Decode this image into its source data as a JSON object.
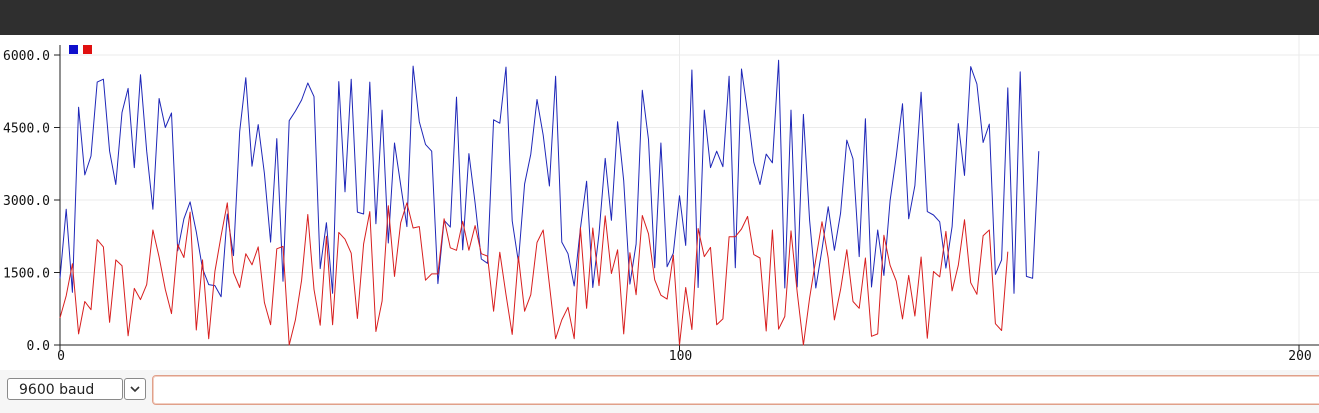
{
  "window": {
    "title_bar_color": "#2f2f2f"
  },
  "plotter": {
    "legend": [
      {
        "color": "#1010cc"
      },
      {
        "color": "#e01010"
      }
    ]
  },
  "chart_data": {
    "type": "line",
    "x_range": [
      0,
      200
    ],
    "x_ticks": [
      "0",
      "100",
      "200"
    ],
    "y_range": [
      0,
      6000
    ],
    "y_ticks": [
      "0.0",
      "1500.0",
      "3000.0",
      "4500.0",
      "6000.0"
    ],
    "grid": true,
    "series": [
      {
        "color": "#1f27b8",
        "values": [
          1380,
          2810,
          1090,
          4920,
          3520,
          3910,
          5440,
          5500,
          4010,
          3320,
          4810,
          5310,
          3670,
          5590,
          4010,
          2810,
          5100,
          4500,
          4800,
          1950,
          2610,
          2960,
          2340,
          1580,
          1250,
          1230,
          1000,
          2710,
          1850,
          4420,
          5530,
          3700,
          4560,
          3550,
          2130,
          4270,
          1320,
          4640,
          4840,
          5070,
          5420,
          5140,
          1580,
          2530,
          1070,
          5450,
          3170,
          5500,
          2750,
          2710,
          5440,
          2510,
          4860,
          2110,
          4180,
          3310,
          2450,
          5770,
          4620,
          4150,
          4010,
          1270,
          2580,
          2440,
          5130,
          1970,
          3960,
          2940,
          1780,
          1690,
          4660,
          4590,
          5750,
          2570,
          1720,
          3330,
          3950,
          5080,
          4340,
          3290,
          5560,
          2130,
          1890,
          1220,
          2410,
          3390,
          1190,
          2300,
          3860,
          2580,
          4620,
          3400,
          1260,
          2090,
          5270,
          4250,
          1600,
          4180,
          1620,
          1900,
          3090,
          2060,
          5690,
          1190,
          4860,
          3670,
          4010,
          3690,
          5560,
          1600,
          5710,
          4810,
          3780,
          3320,
          3950,
          3770,
          5890,
          1180,
          4860,
          1200,
          4770,
          2580,
          1180,
          1980,
          2860,
          1960,
          2730,
          4240,
          3850,
          1830,
          4680,
          1200,
          2380,
          1440,
          2990,
          3910,
          4990,
          2610,
          3300,
          5230,
          2760,
          2690,
          2550,
          1590,
          2450,
          4580,
          3510,
          5760,
          5400,
          4190,
          4570,
          1460,
          1760,
          5320,
          1070,
          5650,
          1420,
          1380,
          4010
        ]
      },
      {
        "color": "#d81f1f",
        "values": [
          560,
          1020,
          1680,
          230,
          900,
          730,
          2180,
          2030,
          470,
          1760,
          1640,
          190,
          1170,
          940,
          1250,
          2380,
          1820,
          1150,
          650,
          2080,
          1810,
          2750,
          310,
          1760,
          130,
          1520,
          2260,
          2940,
          1500,
          1190,
          1890,
          1660,
          2030,
          880,
          420,
          1990,
          2040,
          0,
          520,
          1340,
          2700,
          1150,
          410,
          2250,
          420,
          2330,
          2190,
          1900,
          550,
          2090,
          2760,
          280,
          910,
          2880,
          1420,
          2530,
          2940,
          2420,
          2450,
          1340,
          1470,
          1470,
          2610,
          2010,
          1960,
          2560,
          1960,
          2470,
          1890,
          1840,
          700,
          1920,
          1040,
          220,
          1830,
          700,
          1040,
          2120,
          2380,
          1250,
          130,
          520,
          780,
          130,
          2430,
          760,
          2420,
          1230,
          2670,
          1480,
          1970,
          230,
          1910,
          1040,
          2680,
          2300,
          1350,
          1030,
          950,
          1860,
          0,
          1190,
          320,
          2410,
          1830,
          2020,
          420,
          540,
          2240,
          2240,
          2400,
          2660,
          1870,
          1800,
          290,
          2380,
          330,
          590,
          2360,
          1090,
          0,
          970,
          1770,
          2550,
          1800,
          520,
          1150,
          1970,
          900,
          760,
          1800,
          180,
          230,
          2270,
          1650,
          1320,
          540,
          1440,
          600,
          1820,
          140,
          1520,
          1410,
          2350,
          1120,
          1650,
          2590,
          1290,
          1050,
          2260,
          2380,
          440,
          300,
          1930
        ]
      }
    ]
  },
  "footer": {
    "baud_label": "9600 baud",
    "message_placeholder": ""
  }
}
